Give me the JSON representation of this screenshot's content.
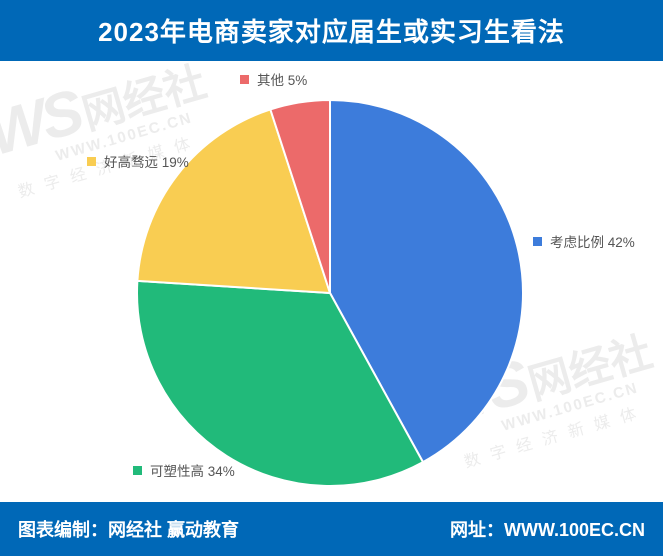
{
  "header": {
    "title": "2023年电商卖家对应届生或实习生看法"
  },
  "chart_data": {
    "type": "pie",
    "title": "2023年电商卖家对应届生或实习生看法",
    "unit": "%",
    "start_angle": "12-oclock",
    "direction": "clockwise",
    "slices": [
      {
        "label": "考虑比例",
        "value": 42,
        "color": "#3D7CDB"
      },
      {
        "label": "可塑性高",
        "value": 34,
        "color": "#21BA7A"
      },
      {
        "label": "好高骛远",
        "value": 19,
        "color": "#F9CD52"
      },
      {
        "label": "其他",
        "value": 5,
        "color": "#EC6A6A"
      }
    ],
    "legend_position": "labels-beside-slices",
    "grid": false
  },
  "watermark": {
    "logo": "WS",
    "brand": "网经社",
    "url": "WWW.100EC.CN",
    "tagline": "数字经济新媒体"
  },
  "footer": {
    "left": "图表编制：网经社 赢动教育",
    "right": "网址：WWW.100EC.CN"
  },
  "colors": {
    "bar_blue": "#0068B7",
    "label_text": "#555555",
    "pie_stroke": "#FFFFFF"
  }
}
